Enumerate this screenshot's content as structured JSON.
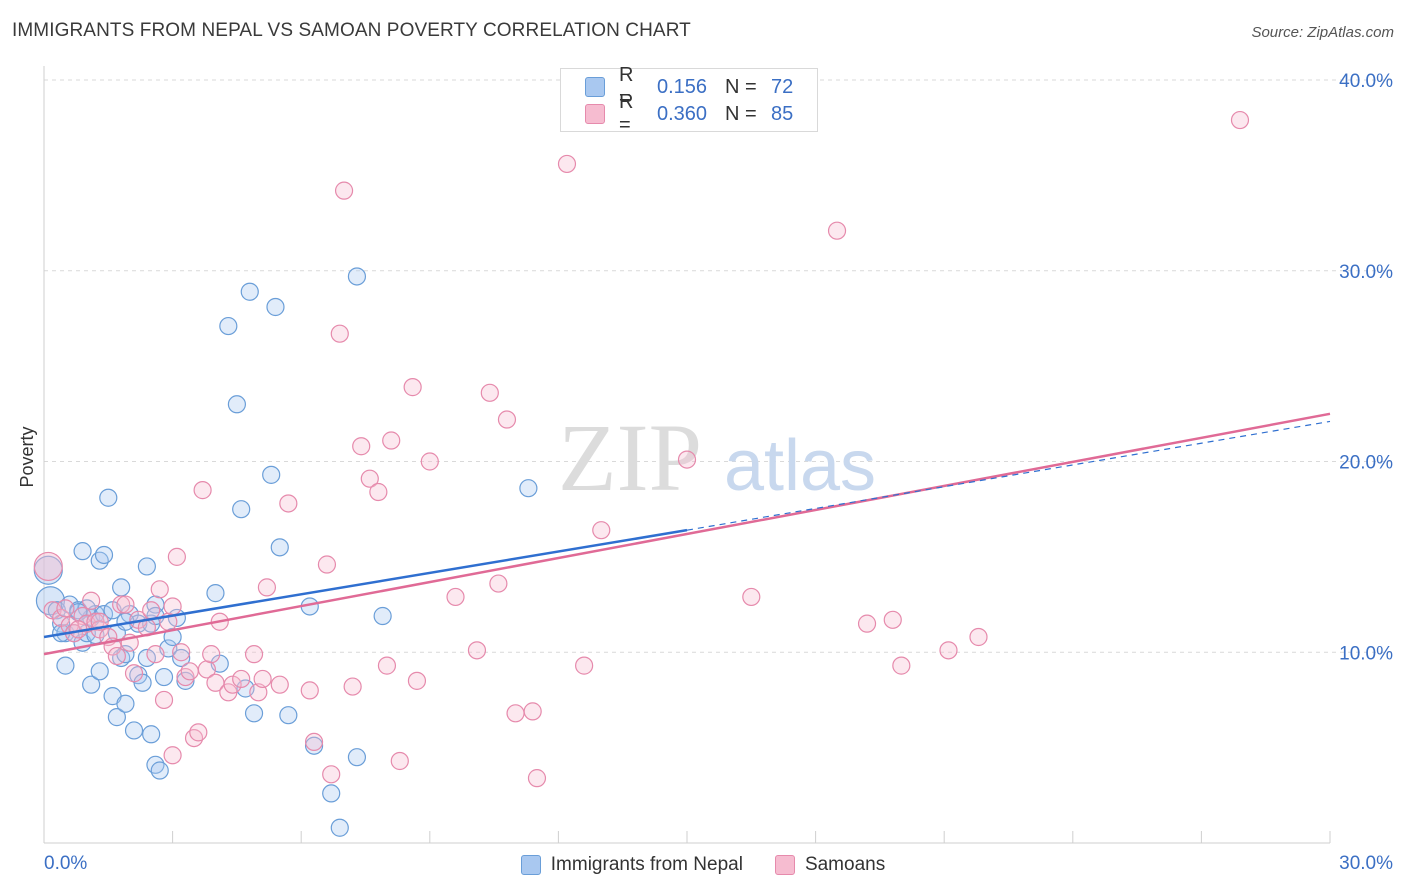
{
  "title": "IMMIGRANTS FROM NEPAL VS SAMOAN POVERTY CORRELATION CHART",
  "source": "Source: ZipAtlas.com",
  "watermark": {
    "zip": "ZIP",
    "atlas": "atlas"
  },
  "colors": {
    "nepal_fill": "#a9c8f0",
    "nepal_stroke": "#6a9ed8",
    "nepal_line": "#2f6fd0",
    "samoan_fill": "#f6bcd0",
    "samoan_stroke": "#e68aac",
    "samoan_line": "#e06a96",
    "axis_label": "#3b6fc4",
    "grid": "#d9d9d9"
  },
  "legend_top": {
    "rows": [
      {
        "r_label": "R =",
        "r_value": "0.156",
        "n_label": "N =",
        "n_value": "72"
      },
      {
        "r_label": "R =",
        "r_value": "0.360",
        "n_label": "N =",
        "n_value": "85"
      }
    ]
  },
  "legend_bottom": [
    "Immigrants from Nepal",
    "Samoans"
  ],
  "chart_data": {
    "type": "scatter",
    "title": "IMMIGRANTS FROM NEPAL VS SAMOAN POVERTY CORRELATION CHART",
    "xlabel": "",
    "ylabel": "Poverty",
    "xlim": [
      0,
      30
    ],
    "ylim": [
      0,
      40
    ],
    "x_tick_labels": [
      "0.0%",
      "30.0%"
    ],
    "y_ticks": [
      10,
      20,
      30,
      40
    ],
    "y_tick_labels": [
      "10.0%",
      "20.0%",
      "30.0%",
      "40.0%"
    ],
    "grid": true,
    "legend_position": "top-center",
    "series": [
      {
        "name": "Immigrants from Nepal",
        "r": 0.156,
        "n": 72,
        "trend": {
          "x": [
            0,
            15
          ],
          "y": [
            10.8,
            16.4
          ]
        },
        "trend_extension": {
          "x": [
            15,
            30
          ],
          "y": [
            16.4,
            22.1
          ]
        },
        "points": [
          [
            0.1,
            14.3
          ],
          [
            0.15,
            12.7
          ],
          [
            0.3,
            12.2
          ],
          [
            0.4,
            11.5
          ],
          [
            0.5,
            11.0
          ],
          [
            0.6,
            12.5
          ],
          [
            0.7,
            11.0
          ],
          [
            0.8,
            12.2
          ],
          [
            0.9,
            10.5
          ],
          [
            1.0,
            11.0
          ],
          [
            1.1,
            11.8
          ],
          [
            1.2,
            12.0
          ],
          [
            0.5,
            9.3
          ],
          [
            0.9,
            15.3
          ],
          [
            1.1,
            8.3
          ],
          [
            1.3,
            14.8
          ],
          [
            1.4,
            15.1
          ],
          [
            1.3,
            9.0
          ],
          [
            1.4,
            12.0
          ],
          [
            1.5,
            18.1
          ],
          [
            1.6,
            12.2
          ],
          [
            1.7,
            11.0
          ],
          [
            1.6,
            7.7
          ],
          [
            1.7,
            6.6
          ],
          [
            1.8,
            9.7
          ],
          [
            1.8,
            13.4
          ],
          [
            1.9,
            9.9
          ],
          [
            1.9,
            7.3
          ],
          [
            2.0,
            12.0
          ],
          [
            2.1,
            5.9
          ],
          [
            2.2,
            8.8
          ],
          [
            2.2,
            11.5
          ],
          [
            2.3,
            8.4
          ],
          [
            2.4,
            9.7
          ],
          [
            2.4,
            14.5
          ],
          [
            2.5,
            11.5
          ],
          [
            2.5,
            5.7
          ],
          [
            2.6,
            12.5
          ],
          [
            2.6,
            4.1
          ],
          [
            2.7,
            3.8
          ],
          [
            2.8,
            8.7
          ],
          [
            2.9,
            10.2
          ],
          [
            3.1,
            11.8
          ],
          [
            3.2,
            9.7
          ],
          [
            3.3,
            8.5
          ],
          [
            4.0,
            13.1
          ],
          [
            4.1,
            9.4
          ],
          [
            4.3,
            27.1
          ],
          [
            4.5,
            23.0
          ],
          [
            4.6,
            17.5
          ],
          [
            4.7,
            8.1
          ],
          [
            4.8,
            28.9
          ],
          [
            4.9,
            6.8
          ],
          [
            5.3,
            19.3
          ],
          [
            5.4,
            28.1
          ],
          [
            5.5,
            15.5
          ],
          [
            5.7,
            6.7
          ],
          [
            6.2,
            12.4
          ],
          [
            6.3,
            5.1
          ],
          [
            6.7,
            2.6
          ],
          [
            6.9,
            0.8
          ],
          [
            7.3,
            29.7
          ],
          [
            7.3,
            4.5
          ],
          [
            7.9,
            11.9
          ],
          [
            11.3,
            18.6
          ],
          [
            1.0,
            12.3
          ],
          [
            0.8,
            12.1
          ],
          [
            1.9,
            11.6
          ],
          [
            2.6,
            11.9
          ],
          [
            3.0,
            10.8
          ],
          [
            0.4,
            11.0
          ],
          [
            1.2,
            10.9
          ]
        ]
      },
      {
        "name": "Samoans",
        "r": 0.36,
        "n": 85,
        "trend": {
          "x": [
            0,
            30
          ],
          "y": [
            9.9,
            22.5
          ]
        },
        "points": [
          [
            0.1,
            14.5
          ],
          [
            0.2,
            12.2
          ],
          [
            0.4,
            11.8
          ],
          [
            0.5,
            12.3
          ],
          [
            0.6,
            11.4
          ],
          [
            0.7,
            11.0
          ],
          [
            0.9,
            11.9
          ],
          [
            1.0,
            11.5
          ],
          [
            1.1,
            12.7
          ],
          [
            1.2,
            11.6
          ],
          [
            1.3,
            11.2
          ],
          [
            1.5,
            10.8
          ],
          [
            1.6,
            10.3
          ],
          [
            1.7,
            9.8
          ],
          [
            1.8,
            12.5
          ],
          [
            1.9,
            12.5
          ],
          [
            2.0,
            10.5
          ],
          [
            2.1,
            8.9
          ],
          [
            2.2,
            11.7
          ],
          [
            2.4,
            11.3
          ],
          [
            2.5,
            12.2
          ],
          [
            2.6,
            9.9
          ],
          [
            2.7,
            13.3
          ],
          [
            2.8,
            7.5
          ],
          [
            2.9,
            11.6
          ],
          [
            3.0,
            4.6
          ],
          [
            3.1,
            15.0
          ],
          [
            3.2,
            10.0
          ],
          [
            3.3,
            8.7
          ],
          [
            3.4,
            9.0
          ],
          [
            3.5,
            5.5
          ],
          [
            3.6,
            5.8
          ],
          [
            3.7,
            18.5
          ],
          [
            3.8,
            9.1
          ],
          [
            3.9,
            9.9
          ],
          [
            4.0,
            8.4
          ],
          [
            4.1,
            11.6
          ],
          [
            4.3,
            7.9
          ],
          [
            4.4,
            8.3
          ],
          [
            4.6,
            8.6
          ],
          [
            4.9,
            9.9
          ],
          [
            5.0,
            7.9
          ],
          [
            5.1,
            8.6
          ],
          [
            5.2,
            13.4
          ],
          [
            5.5,
            8.3
          ],
          [
            5.7,
            17.8
          ],
          [
            6.2,
            8.0
          ],
          [
            6.3,
            5.3
          ],
          [
            6.6,
            14.6
          ],
          [
            6.7,
            3.6
          ],
          [
            6.9,
            26.7
          ],
          [
            7.0,
            34.2
          ],
          [
            7.2,
            8.2
          ],
          [
            7.4,
            20.8
          ],
          [
            7.6,
            19.1
          ],
          [
            7.8,
            18.4
          ],
          [
            8.0,
            9.3
          ],
          [
            8.1,
            21.1
          ],
          [
            8.3,
            4.3
          ],
          [
            8.6,
            23.9
          ],
          [
            8.7,
            8.5
          ],
          [
            9.0,
            20.0
          ],
          [
            9.6,
            12.9
          ],
          [
            10.1,
            10.1
          ],
          [
            10.4,
            23.6
          ],
          [
            10.6,
            13.6
          ],
          [
            10.8,
            22.2
          ],
          [
            11.0,
            6.8
          ],
          [
            11.4,
            6.9
          ],
          [
            11.5,
            3.4
          ],
          [
            12.2,
            35.6
          ],
          [
            12.6,
            9.3
          ],
          [
            13.0,
            16.4
          ],
          [
            15.0,
            20.1
          ],
          [
            16.5,
            12.9
          ],
          [
            18.5,
            32.1
          ],
          [
            19.2,
            11.5
          ],
          [
            19.8,
            11.7
          ],
          [
            20.0,
            9.3
          ],
          [
            21.1,
            10.1
          ],
          [
            21.8,
            10.8
          ],
          [
            27.9,
            37.9
          ],
          [
            1.3,
            11.6
          ],
          [
            0.8,
            11.2
          ],
          [
            3.0,
            12.4
          ]
        ]
      }
    ]
  }
}
